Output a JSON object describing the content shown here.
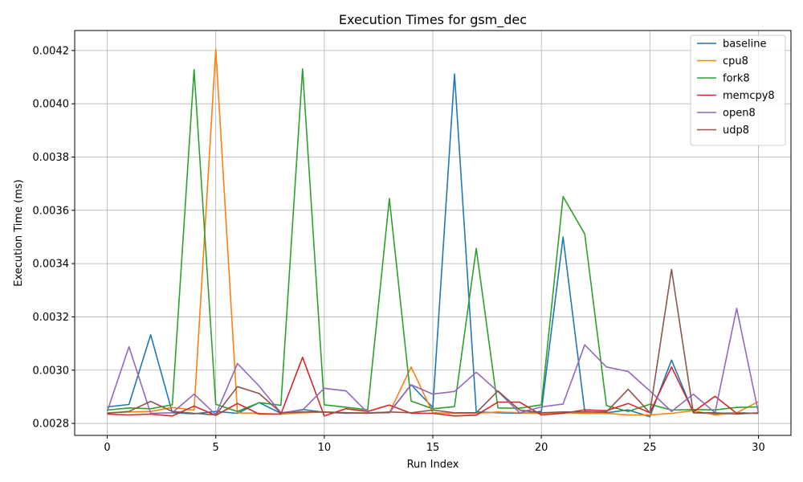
{
  "chart_data": {
    "type": "line",
    "title": "Execution Times for gsm_dec",
    "xlabel": "Run Index",
    "ylabel": "Execution Time (ms)",
    "xlim": [
      -1.5,
      31.5
    ],
    "ylim": [
      0.002755,
      0.004275
    ],
    "xticks": [
      0,
      5,
      10,
      15,
      20,
      25,
      30
    ],
    "yticks": [
      0.0028,
      0.003,
      0.0032,
      0.0034,
      0.0036,
      0.0038,
      0.004,
      0.0042
    ],
    "ytick_labels": [
      "0.0028",
      "0.0030",
      "0.0032",
      "0.0034",
      "0.0036",
      "0.0038",
      "0.0040",
      "0.0042"
    ],
    "grid": true,
    "legend_position": "top-right",
    "x": [
      0,
      1,
      2,
      3,
      4,
      5,
      6,
      7,
      8,
      9,
      10,
      11,
      12,
      13,
      14,
      15,
      16,
      17,
      18,
      19,
      20,
      21,
      22,
      23,
      24,
      25,
      26,
      27,
      28,
      29,
      30
    ],
    "series": [
      {
        "name": "baseline",
        "color": "#1f77b4",
        "values": [
          0.002862,
          0.002871,
          0.003133,
          0.00284,
          0.002836,
          0.002845,
          0.002838,
          0.002878,
          0.002838,
          0.002852,
          0.002842,
          0.002838,
          0.00284,
          0.002842,
          0.002945,
          0.00286,
          0.004112,
          0.002843,
          0.00284,
          0.002838,
          0.002845,
          0.0035,
          0.002845,
          0.00284,
          0.002851,
          0.002825,
          0.003038,
          0.00284,
          0.002837,
          0.00284,
          0.002838
        ]
      },
      {
        "name": "cpu8",
        "color": "#ff7f0e",
        "values": [
          0.00284,
          0.002843,
          0.002845,
          0.00286,
          0.00285,
          0.004205,
          0.00284,
          0.002838,
          0.002835,
          0.00284,
          0.002843,
          0.00284,
          0.00284,
          0.00284,
          0.003012,
          0.00284,
          0.002838,
          0.002838,
          0.002843,
          0.00284,
          0.002838,
          0.00284,
          0.002838,
          0.002838,
          0.002832,
          0.002832,
          0.002838,
          0.002848,
          0.002832,
          0.00284,
          0.002882
        ]
      },
      {
        "name": "fork8",
        "color": "#2ca02c",
        "values": [
          0.00285,
          0.002858,
          0.002855,
          0.00287,
          0.004128,
          0.002872,
          0.002845,
          0.002878,
          0.002868,
          0.004131,
          0.00287,
          0.002861,
          0.002851,
          0.003644,
          0.002884,
          0.002855,
          0.002863,
          0.003457,
          0.002858,
          0.002857,
          0.00287,
          0.003652,
          0.003511,
          0.002867,
          0.002845,
          0.002872,
          0.00285,
          0.002852,
          0.002851,
          0.00286,
          0.002862
        ]
      },
      {
        "name": "memcpy8",
        "color": "#d62728",
        "values": [
          0.002835,
          0.002832,
          0.002835,
          0.002828,
          0.002865,
          0.00283,
          0.002875,
          0.002835,
          0.002835,
          0.003048,
          0.002828,
          0.002855,
          0.002845,
          0.002869,
          0.002838,
          0.002838,
          0.002828,
          0.002831,
          0.00288,
          0.00288,
          0.002832,
          0.002838,
          0.002851,
          0.002848,
          0.002875,
          0.00284,
          0.003012,
          0.002843,
          0.002902,
          0.002838,
          0.002838
        ]
      },
      {
        "name": "open8",
        "color": "#9467bd",
        "values": [
          0.002845,
          0.003088,
          0.002838,
          0.00284,
          0.00291,
          0.002833,
          0.003025,
          0.00294,
          0.00284,
          0.00285,
          0.002932,
          0.002922,
          0.00284,
          0.00284,
          0.002945,
          0.00291,
          0.00292,
          0.002992,
          0.00292,
          0.00284,
          0.002862,
          0.002873,
          0.003095,
          0.003012,
          0.002995,
          0.002922,
          0.002845,
          0.00291,
          0.00284,
          0.003232,
          0.00284
        ]
      },
      {
        "name": "udp8",
        "color": "#8c564b",
        "values": [
          0.002838,
          0.002845,
          0.002883,
          0.002845,
          0.002838,
          0.002832,
          0.002938,
          0.002912,
          0.00284,
          0.002843,
          0.002843,
          0.00284,
          0.002838,
          0.002843,
          0.00284,
          0.00285,
          0.00284,
          0.00284,
          0.002922,
          0.00285,
          0.00284,
          0.002843,
          0.002843,
          0.002843,
          0.002928,
          0.00284,
          0.003378,
          0.00284,
          0.00284,
          0.002835,
          0.00284
        ]
      }
    ]
  }
}
